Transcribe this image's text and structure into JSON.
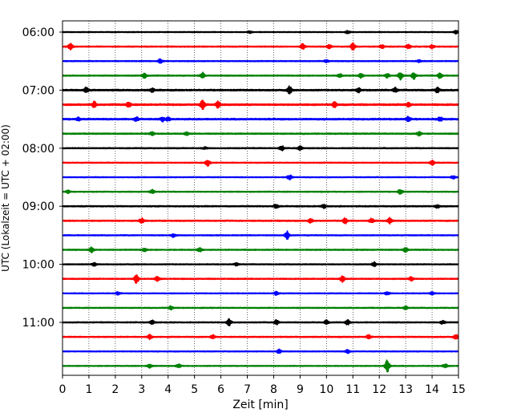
{
  "chart_data": {
    "type": "line",
    "title": "",
    "xlabel": "Zeit  [min]",
    "ylabel": "UTC (Lokalzeit = UTC + 02:00)",
    "xlim": [
      0,
      15
    ],
    "x_ticks": [
      "0",
      "1",
      "2",
      "3",
      "4",
      "5",
      "6",
      "7",
      "8",
      "9",
      "10",
      "11",
      "12",
      "13",
      "14",
      "15"
    ],
    "y_tick_labels": [
      "06:00",
      "07:00",
      "08:00",
      "09:00",
      "10:00",
      "11:00"
    ],
    "grid": "vertical dotted at each minute",
    "trace_colors": [
      "#000000",
      "#ff0000",
      "#0000ff",
      "#008000"
    ],
    "rows": [
      "06:00",
      "06:15",
      "06:30",
      "06:45",
      "07:00",
      "07:15",
      "07:30",
      "07:45",
      "08:00",
      "08:15",
      "08:30",
      "08:45",
      "09:00",
      "09:15",
      "09:30",
      "09:45",
      "10:00",
      "10:15",
      "10:30",
      "10:45",
      "11:00",
      "11:15",
      "11:30",
      "11:45"
    ],
    "base_amplitude": [
      0.4,
      0.5,
      0.45,
      0.5,
      0.75,
      0.8,
      0.75,
      0.55,
      0.5,
      0.45,
      0.4,
      0.45,
      0.55,
      0.55,
      0.45,
      0.5,
      0.45,
      0.5,
      0.4,
      0.45,
      0.5,
      0.5,
      0.4,
      0.4
    ],
    "events": [
      [
        [
          7.1,
          0.6
        ],
        [
          10.8,
          0.8
        ],
        [
          14.9,
          1.0
        ]
      ],
      [
        [
          0.3,
          2.0
        ],
        [
          9.1,
          1.6
        ],
        [
          10.1,
          1.2
        ],
        [
          11.0,
          2.2
        ],
        [
          12.1,
          1.1
        ],
        [
          13.1,
          1.4
        ],
        [
          14.0,
          1.0
        ]
      ],
      [
        [
          3.7,
          1.2
        ],
        [
          10.0,
          0.9
        ],
        [
          13.5,
          0.7
        ]
      ],
      [
        [
          3.1,
          1.6
        ],
        [
          5.3,
          1.8
        ],
        [
          10.5,
          1.2
        ],
        [
          11.3,
          1.6
        ],
        [
          12.3,
          1.4
        ],
        [
          12.8,
          2.4
        ],
        [
          13.3,
          2.2
        ],
        [
          14.3,
          1.8
        ]
      ],
      [
        [
          0.9,
          1.6
        ],
        [
          3.4,
          1.1
        ],
        [
          8.6,
          2.2
        ],
        [
          11.2,
          1.4
        ],
        [
          12.6,
          1.4
        ],
        [
          14.2,
          1.6
        ]
      ],
      [
        [
          1.2,
          1.8
        ],
        [
          2.5,
          1.6
        ],
        [
          5.3,
          3.2
        ],
        [
          5.9,
          2.2
        ],
        [
          10.3,
          1.6
        ],
        [
          13.1,
          1.3
        ]
      ],
      [
        [
          0.6,
          0.9
        ],
        [
          2.8,
          1.2
        ],
        [
          3.8,
          1.3
        ],
        [
          4.0,
          1.0
        ],
        [
          13.1,
          1.5
        ],
        [
          14.3,
          1.2
        ]
      ],
      [
        [
          3.4,
          1.2
        ],
        [
          4.7,
          1.1
        ],
        [
          13.5,
          1.4
        ]
      ],
      [
        [
          5.4,
          0.6
        ],
        [
          8.3,
          1.5
        ],
        [
          9.0,
          1.3
        ]
      ],
      [
        [
          5.5,
          2.0
        ],
        [
          14.0,
          1.4
        ]
      ],
      [
        [
          8.6,
          1.6
        ],
        [
          14.8,
          0.9
        ]
      ],
      [
        [
          0.2,
          0.9
        ],
        [
          3.4,
          1.2
        ],
        [
          12.8,
          1.6
        ]
      ],
      [
        [
          8.1,
          1.4
        ],
        [
          9.9,
          1.2
        ],
        [
          14.2,
          1.0
        ]
      ],
      [
        [
          3.0,
          1.6
        ],
        [
          9.4,
          1.3
        ],
        [
          10.7,
          1.7
        ],
        [
          11.7,
          1.4
        ],
        [
          12.4,
          1.9
        ]
      ],
      [
        [
          4.2,
          1.1
        ],
        [
          8.5,
          2.6
        ]
      ],
      [
        [
          1.1,
          1.6
        ],
        [
          3.1,
          1.0
        ],
        [
          5.2,
          1.2
        ],
        [
          13.0,
          1.3
        ]
      ],
      [
        [
          1.2,
          1.0
        ],
        [
          6.6,
          1.0
        ],
        [
          11.8,
          1.4
        ]
      ],
      [
        [
          2.8,
          3.0
        ],
        [
          3.6,
          1.6
        ],
        [
          10.6,
          2.0
        ],
        [
          13.2,
          1.2
        ]
      ],
      [
        [
          2.1,
          0.8
        ],
        [
          8.1,
          1.2
        ],
        [
          12.3,
          1.0
        ],
        [
          14.0,
          1.0
        ]
      ],
      [
        [
          4.1,
          1.3
        ],
        [
          13.0,
          1.1
        ]
      ],
      [
        [
          3.4,
          1.3
        ],
        [
          6.3,
          2.2
        ],
        [
          8.1,
          1.6
        ],
        [
          10.0,
          1.4
        ],
        [
          10.8,
          1.5
        ],
        [
          14.4,
          1.0
        ]
      ],
      [
        [
          3.3,
          1.5
        ],
        [
          5.7,
          1.3
        ],
        [
          11.6,
          1.4
        ],
        [
          14.9,
          1.3
        ]
      ],
      [
        [
          8.2,
          1.2
        ],
        [
          10.8,
          1.2
        ]
      ],
      [
        [
          3.3,
          1.3
        ],
        [
          4.4,
          1.2
        ],
        [
          12.3,
          4.2
        ],
        [
          14.5,
          1.3
        ]
      ]
    ]
  }
}
